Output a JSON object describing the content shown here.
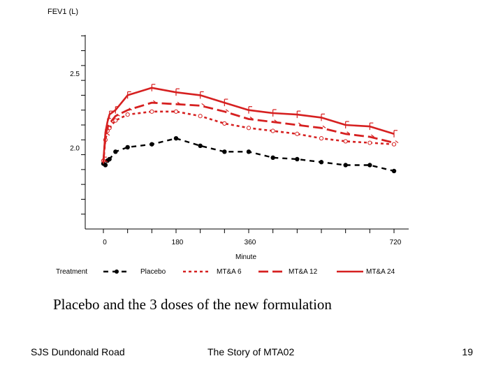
{
  "chart_data": {
    "type": "line",
    "ylabel": "FEV1 (L)",
    "xlabel": "Minute",
    "xlim": [
      0,
      720
    ],
    "ylim": [
      1.5,
      2.9
    ],
    "x_ticks": [
      0,
      180,
      360,
      720
    ],
    "y_ticks": [
      2.0,
      2.5
    ],
    "y_tick_labels": [
      "2.0",
      "2.5"
    ],
    "legend": {
      "title": "Treatment",
      "placement": "bottom"
    },
    "grid": false,
    "series": [
      {
        "name": "Placebo",
        "color": "#000000",
        "style": "dashed-markers",
        "x": [
          0,
          5,
          10,
          15,
          30,
          60,
          120,
          180,
          240,
          300,
          360,
          420,
          480,
          540,
          600,
          660,
          720
        ],
        "y": [
          1.94,
          1.93,
          1.96,
          1.97,
          2.02,
          2.05,
          2.07,
          2.11,
          2.06,
          2.02,
          2.02,
          1.98,
          1.97,
          1.95,
          1.93,
          1.93,
          1.89
        ]
      },
      {
        "name": "MT&A 6",
        "color": "#d62020",
        "style": "dotted",
        "x": [
          0,
          5,
          10,
          15,
          30,
          60,
          120,
          180,
          240,
          300,
          360,
          420,
          480,
          540,
          600,
          660,
          720
        ],
        "y": [
          1.96,
          2.1,
          2.16,
          2.18,
          2.23,
          2.27,
          2.29,
          2.29,
          2.26,
          2.21,
          2.18,
          2.16,
          2.14,
          2.11,
          2.09,
          2.08,
          2.07
        ]
      },
      {
        "name": "MT&A 12",
        "color": "#d62020",
        "style": "dashed",
        "x": [
          0,
          5,
          10,
          15,
          30,
          60,
          120,
          180,
          240,
          300,
          360,
          420,
          480,
          540,
          600,
          660,
          720
        ],
        "y": [
          1.95,
          2.13,
          2.18,
          2.21,
          2.26,
          2.3,
          2.35,
          2.34,
          2.33,
          2.29,
          2.24,
          2.22,
          2.2,
          2.18,
          2.14,
          2.12,
          2.08
        ]
      },
      {
        "name": "MT&A 24",
        "color": "#d62020",
        "style": "solid",
        "x": [
          0,
          5,
          10,
          15,
          30,
          60,
          120,
          180,
          240,
          300,
          360,
          420,
          480,
          540,
          600,
          660,
          720
        ],
        "y": [
          1.96,
          2.15,
          2.22,
          2.27,
          2.3,
          2.4,
          2.45,
          2.42,
          2.4,
          2.35,
          2.3,
          2.28,
          2.27,
          2.25,
          2.2,
          2.19,
          2.14
        ]
      }
    ]
  },
  "caption": "Placebo and the 3 doses of the new formulation",
  "footer": {
    "left": "SJS Dundonald Road",
    "center": "The Story of MTA02",
    "page": "19"
  }
}
